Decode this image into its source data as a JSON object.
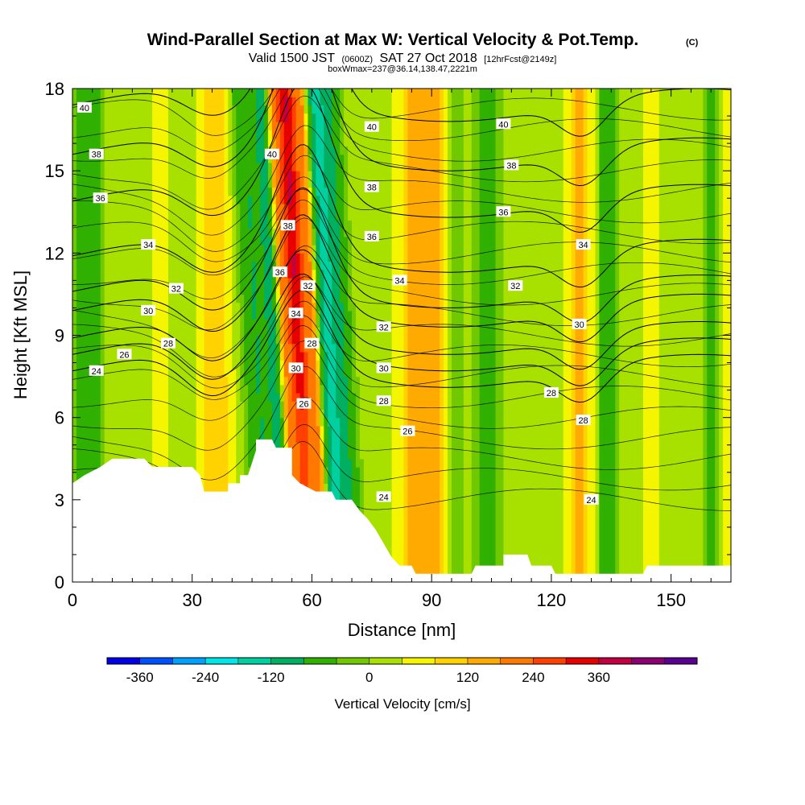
{
  "header": {
    "title": "Wind-Parallel Section at Max W: Vertical Velocity & Pot.Temp.",
    "title_tag": "(C)",
    "valid_pre": "Valid 1500 JST",
    "valid_z": "(0600Z)",
    "valid_post": "SAT 27 Oct 2018",
    "fcst": "[12hrFcst@2149z]",
    "box": "boxWmax=237@36.14,138.47,2221m"
  },
  "chart_data": {
    "type": "heatmap",
    "xlabel": "Distance [nm]",
    "ylabel": "Height [Kft MSL]",
    "xlim": [
      0,
      165
    ],
    "ylim": [
      0,
      18
    ],
    "xticks": [
      0,
      30,
      60,
      90,
      120,
      150
    ],
    "yticks": [
      0,
      3,
      6,
      9,
      12,
      15,
      18
    ],
    "colorbar": {
      "label": "Vertical Velocity [cm/s]",
      "ticks": [
        "-360",
        "-240",
        "-120",
        "0",
        "120",
        "240",
        "360"
      ],
      "levels": [
        -420,
        -360,
        -300,
        -240,
        -180,
        -120,
        -60,
        -30,
        0,
        30,
        60,
        120,
        180,
        240,
        300,
        360,
        420
      ],
      "colors": [
        "#0000e6",
        "#0050ff",
        "#00a0ff",
        "#00e6e6",
        "#00d0a0",
        "#00b060",
        "#30b000",
        "#70c800",
        "#a8e000",
        "#f5f500",
        "#ffd200",
        "#ffaa00",
        "#ff7800",
        "#ff4000",
        "#e60000",
        "#c00040",
        "#8a0070",
        "#5a0090"
      ]
    },
    "velocity_columns": [
      {
        "x": 2,
        "hw": 1.5,
        "w": -60
      },
      {
        "x": 5,
        "hw": 2,
        "w": -100
      },
      {
        "x": 22,
        "hw": 2.5,
        "w": 20
      },
      {
        "x": 36,
        "hw": 4,
        "w": 60
      },
      {
        "x": 47,
        "hw": 3.5,
        "w": -110
      },
      {
        "x": 52,
        "hw": 2.2,
        "w": -150
      },
      {
        "x": 54,
        "hw": 2,
        "w": 180
      },
      {
        "x": 57.5,
        "hw": 2,
        "w": 300
      },
      {
        "x": 61,
        "hw": 1.8,
        "w": 180
      },
      {
        "x": 65,
        "hw": 3,
        "w": -180
      },
      {
        "x": 69,
        "hw": 2.5,
        "w": -80
      },
      {
        "x": 88,
        "hw": 5,
        "w": 120
      },
      {
        "x": 96,
        "hw": 2.5,
        "w": -40
      },
      {
        "x": 104,
        "hw": 3,
        "w": -80
      },
      {
        "x": 127,
        "hw": 3,
        "w": 80
      },
      {
        "x": 134,
        "hw": 2,
        "w": -100
      },
      {
        "x": 145,
        "hw": 3,
        "w": 15
      },
      {
        "x": 160,
        "hw": 2,
        "w": -60
      },
      {
        "x": 164,
        "hw": 1.5,
        "w": 20
      }
    ],
    "terrain": [
      [
        0,
        3.6
      ],
      [
        3,
        3.9
      ],
      [
        7,
        4.2
      ],
      [
        10,
        4.5
      ],
      [
        18,
        4.5
      ],
      [
        20,
        4.2
      ],
      [
        30,
        4.2
      ],
      [
        32,
        3.9
      ],
      [
        33,
        3.3
      ],
      [
        39,
        3.3
      ],
      [
        39,
        3.6
      ],
      [
        42,
        3.6
      ],
      [
        42,
        3.9
      ],
      [
        44,
        3.9
      ],
      [
        46,
        4.8
      ],
      [
        46,
        5.2
      ],
      [
        50,
        5.2
      ],
      [
        51,
        4.9
      ],
      [
        55,
        4.9
      ],
      [
        55,
        3.9
      ],
      [
        57,
        3.6
      ],
      [
        61,
        3.3
      ],
      [
        65,
        3.3
      ],
      [
        66,
        3.0
      ],
      [
        70,
        3.0
      ],
      [
        72,
        2.6
      ],
      [
        74,
        2.3
      ],
      [
        76,
        1.9
      ],
      [
        78,
        1.4
      ],
      [
        80,
        0.9
      ],
      [
        82,
        0.6
      ],
      [
        85,
        0.6
      ],
      [
        86,
        0.3
      ],
      [
        100,
        0.3
      ],
      [
        101,
        0.6
      ],
      [
        108,
        0.6
      ],
      [
        108,
        1.0
      ],
      [
        114,
        1.0
      ],
      [
        115,
        0.6
      ],
      [
        120,
        0.6
      ],
      [
        121,
        0.3
      ],
      [
        143,
        0.3
      ],
      [
        144,
        0.6
      ],
      [
        165,
        0.6
      ]
    ],
    "theta_contours": [
      {
        "level": "24",
        "y0": 7.7,
        "steep": 0.0
      },
      {
        "level": "26",
        "y0": 8.3,
        "steep": 0.0
      },
      {
        "level": "28",
        "y0": 8.9,
        "steep": 0.1
      },
      {
        "level": "30",
        "y0": 9.9,
        "steep": 0.2
      },
      {
        "level": "32",
        "y0": 10.6,
        "steep": 0.3
      },
      {
        "level": "34",
        "y0": 11.9,
        "steep": 0.4
      },
      {
        "level": "36",
        "y0": 13.9,
        "steep": 0.5
      },
      {
        "level": "38",
        "y0": 15.6,
        "steep": 0.6
      },
      {
        "level": "40",
        "y0": 17.4,
        "steep": 0.7
      }
    ],
    "contour_labels": [
      {
        "t": "40",
        "x": 3,
        "y": 17.3
      },
      {
        "t": "38",
        "x": 6,
        "y": 15.6
      },
      {
        "t": "36",
        "x": 7,
        "y": 14.0
      },
      {
        "t": "34",
        "x": 19,
        "y": 12.3
      },
      {
        "t": "32",
        "x": 26,
        "y": 10.7
      },
      {
        "t": "30",
        "x": 19,
        "y": 9.9
      },
      {
        "t": "28",
        "x": 24,
        "y": 8.7
      },
      {
        "t": "26",
        "x": 13,
        "y": 8.3
      },
      {
        "t": "24",
        "x": 6,
        "y": 7.7
      },
      {
        "t": "40",
        "x": 50,
        "y": 15.6
      },
      {
        "t": "38",
        "x": 54,
        "y": 13.0
      },
      {
        "t": "36",
        "x": 52,
        "y": 11.3
      },
      {
        "t": "32",
        "x": 59,
        "y": 10.8
      },
      {
        "t": "34",
        "x": 56,
        "y": 9.8
      },
      {
        "t": "28",
        "x": 60,
        "y": 8.7
      },
      {
        "t": "30",
        "x": 56,
        "y": 7.8
      },
      {
        "t": "26",
        "x": 58,
        "y": 6.5
      },
      {
        "t": "40",
        "x": 75,
        "y": 16.6
      },
      {
        "t": "38",
        "x": 75,
        "y": 14.4
      },
      {
        "t": "36",
        "x": 75,
        "y": 12.6
      },
      {
        "t": "34",
        "x": 82,
        "y": 11.0
      },
      {
        "t": "32",
        "x": 78,
        "y": 9.3
      },
      {
        "t": "30",
        "x": 78,
        "y": 7.8
      },
      {
        "t": "28",
        "x": 78,
        "y": 6.6
      },
      {
        "t": "26",
        "x": 84,
        "y": 5.5
      },
      {
        "t": "24",
        "x": 78,
        "y": 3.1
      },
      {
        "t": "40",
        "x": 108,
        "y": 16.7
      },
      {
        "t": "38",
        "x": 110,
        "y": 15.2
      },
      {
        "t": "36",
        "x": 108,
        "y": 13.5
      },
      {
        "t": "32",
        "x": 111,
        "y": 10.8
      },
      {
        "t": "34",
        "x": 128,
        "y": 12.3
      },
      {
        "t": "30",
        "x": 127,
        "y": 9.4
      },
      {
        "t": "28",
        "x": 120,
        "y": 6.9
      },
      {
        "t": "28",
        "x": 128,
        "y": 5.9
      },
      {
        "t": "24",
        "x": 130,
        "y": 3.0
      }
    ]
  }
}
